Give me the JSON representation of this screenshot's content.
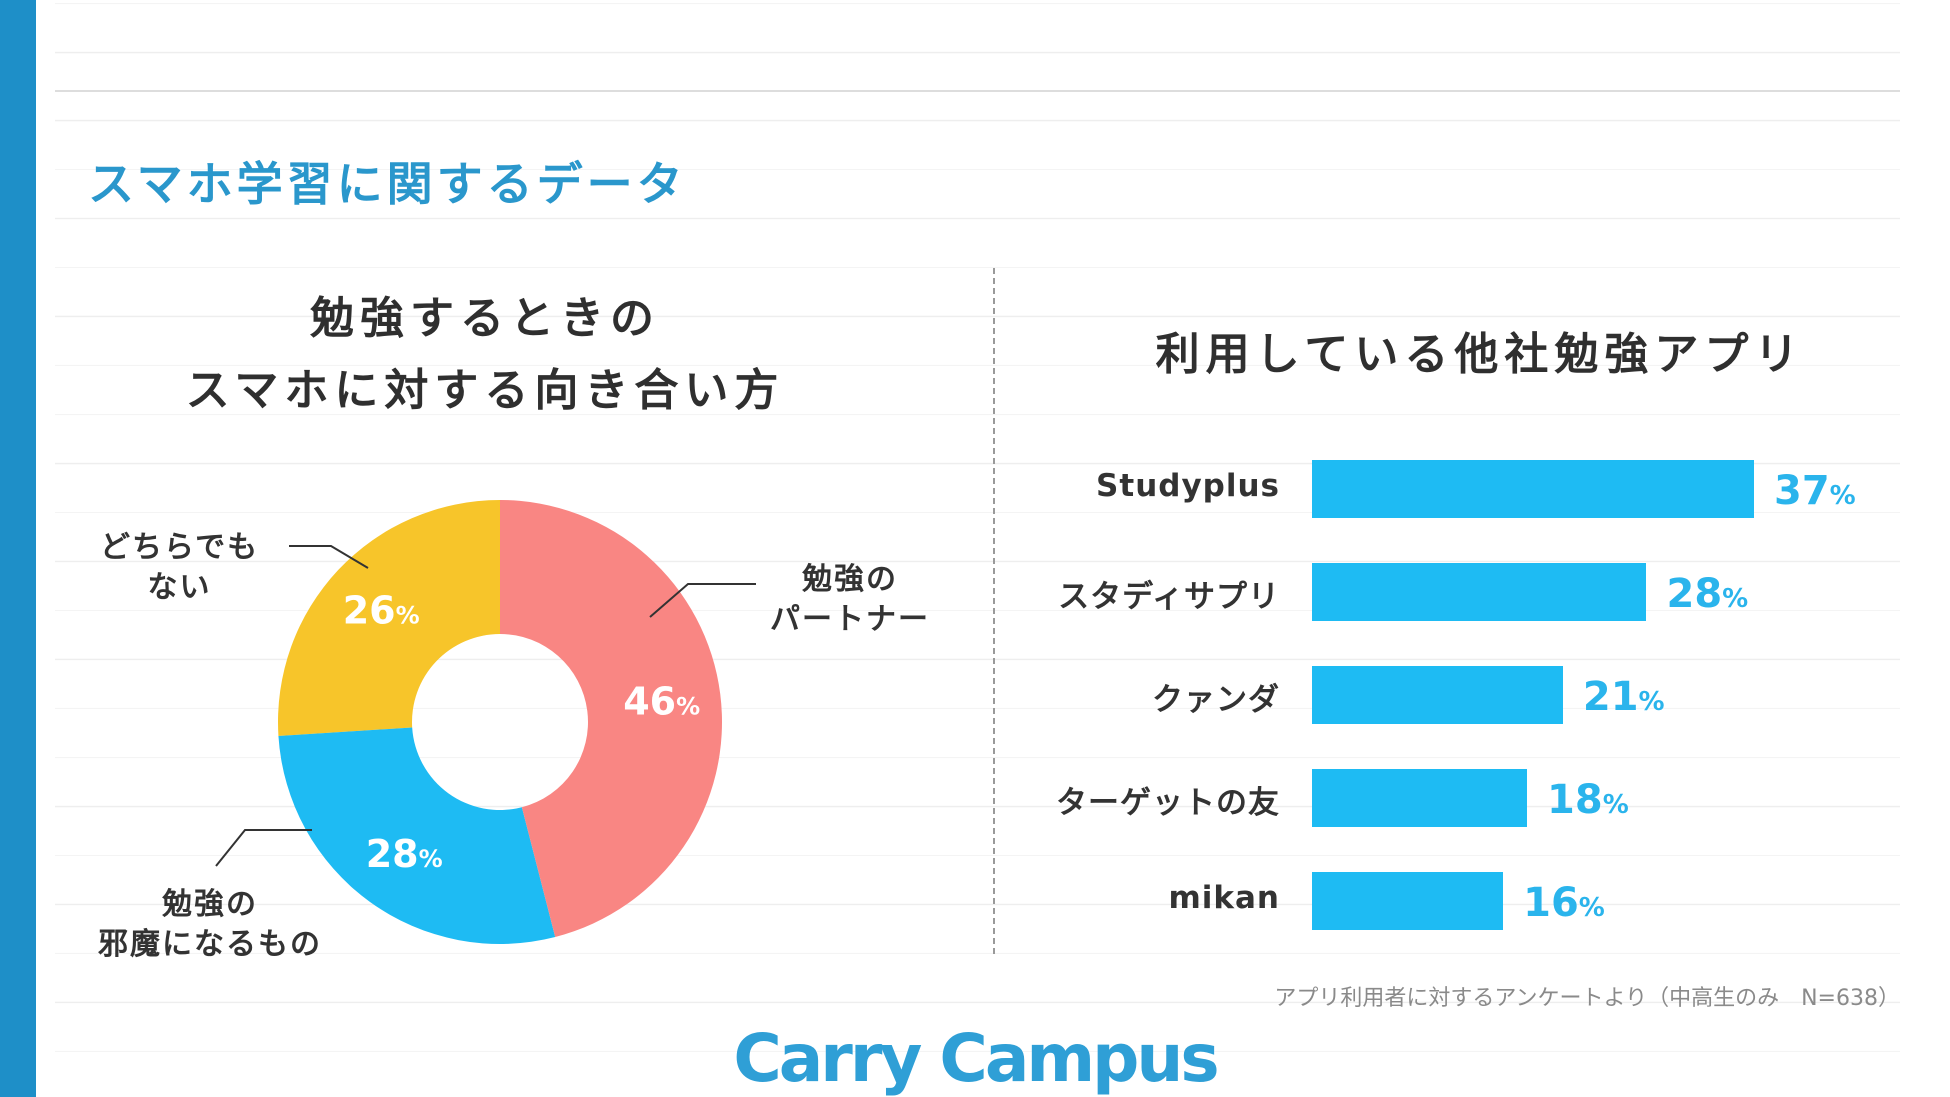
{
  "page_title": "スマホ学習に関するデータ",
  "colors": {
    "accent": "#2a97cc",
    "donut_red": "#f98683",
    "donut_blue": "#1ebbf3",
    "donut_yellow": "#f7c52a",
    "bar": "#1ebbf3",
    "bar_value_text": "#2ab4ec"
  },
  "chart_data": [
    {
      "type": "pie",
      "title": [
        "勉強するときの",
        "スマホに対する向き合い方"
      ],
      "slices": [
        {
          "label": "勉強のパートナー",
          "label_lines": [
            "勉強の",
            "パートナー"
          ],
          "value": 46,
          "color": "#f98683"
        },
        {
          "label": "勉強の邪魔になるもの",
          "label_lines": [
            "勉強の",
            "邪魔になるもの"
          ],
          "value": 28,
          "color": "#1ebbf3"
        },
        {
          "label": "どちらでもない",
          "label_lines": [
            "どちらでも",
            "ない"
          ],
          "value": 26,
          "color": "#f7c52a"
        }
      ],
      "value_suffix": "%"
    },
    {
      "type": "bar",
      "orientation": "horizontal",
      "title": "利用している他社勉強アプリ",
      "categories": [
        "Studyplus",
        "スタディサプリ",
        "クァンダ",
        "ターゲットの友",
        "mikan"
      ],
      "values": [
        37,
        28,
        21,
        18,
        16
      ],
      "value_suffix": "%",
      "grid": false
    }
  ],
  "footnote": "アプリ利用者に対するアンケートより（中高生のみ　N=638）",
  "logo_text": "Carry Campus"
}
